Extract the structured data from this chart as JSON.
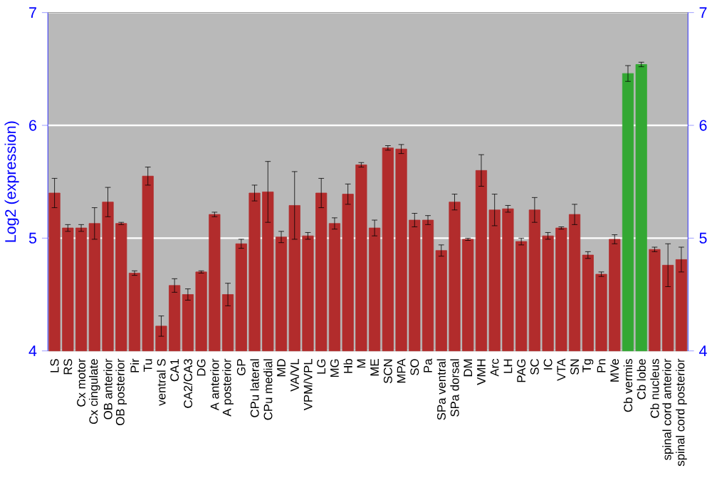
{
  "chart_data": {
    "type": "bar",
    "ylabel": "Log2 (expression)",
    "categories": [
      "LS",
      "RS",
      "Cx motor",
      "Cx cingulate",
      "OB anterior",
      "OB posterior",
      "Pir",
      "Tu",
      "ventral S",
      "CA1",
      "CA2/CA3",
      "DG",
      "A anterior",
      "A posterior",
      "GP",
      "CPu lateral",
      "CPu medial",
      "MD",
      "VA/VL",
      "VPM/VPL",
      "LG",
      "MG",
      "Hb",
      "M",
      "ME",
      "SCN",
      "MPA",
      "SO",
      "Pa",
      "SPa ventral",
      "SPa dorsal",
      "DM",
      "VMH",
      "Arc",
      "LH",
      "PAG",
      "SC",
      "IC",
      "VTA",
      "SN",
      "Tg",
      "Pn",
      "MVe",
      "Cb vermis",
      "Cb lobe",
      "Cb nucleus",
      "spinal cord anterior",
      "spinal cord posterior"
    ],
    "values": [
      5.4,
      5.09,
      5.09,
      5.13,
      5.32,
      5.13,
      4.69,
      5.55,
      4.22,
      4.58,
      4.5,
      4.7,
      5.21,
      4.5,
      4.95,
      5.4,
      5.41,
      5.01,
      5.29,
      5.02,
      5.4,
      5.13,
      5.39,
      5.65,
      5.09,
      5.8,
      5.79,
      5.16,
      5.16,
      4.89,
      5.32,
      4.99,
      5.6,
      5.25,
      5.26,
      4.97,
      5.25,
      5.02,
      5.09,
      5.21,
      4.85,
      4.68,
      4.99,
      6.46,
      6.54,
      4.9,
      4.76,
      4.81
    ],
    "errors": [
      0.13,
      0.03,
      0.03,
      0.14,
      0.13,
      0.01,
      0.02,
      0.08,
      0.09,
      0.06,
      0.05,
      0.01,
      0.02,
      0.1,
      0.04,
      0.07,
      0.27,
      0.05,
      0.3,
      0.03,
      0.13,
      0.05,
      0.09,
      0.02,
      0.07,
      0.02,
      0.04,
      0.06,
      0.04,
      0.05,
      0.07,
      0.01,
      0.14,
      0.14,
      0.03,
      0.03,
      0.11,
      0.03,
      0.01,
      0.09,
      0.03,
      0.02,
      0.04,
      0.07,
      0.02,
      0.02,
      0.19,
      0.11
    ],
    "colors": [
      "#b22c2c",
      "#b22c2c",
      "#b22c2c",
      "#b22c2c",
      "#b22c2c",
      "#b22c2c",
      "#b22c2c",
      "#b22c2c",
      "#b22c2c",
      "#b22c2c",
      "#b22c2c",
      "#b22c2c",
      "#b22c2c",
      "#b22c2c",
      "#b22c2c",
      "#b22c2c",
      "#b22c2c",
      "#b22c2c",
      "#b22c2c",
      "#b22c2c",
      "#b22c2c",
      "#b22c2c",
      "#b22c2c",
      "#b22c2c",
      "#b22c2c",
      "#b22c2c",
      "#b22c2c",
      "#b22c2c",
      "#b22c2c",
      "#b22c2c",
      "#b22c2c",
      "#b22c2c",
      "#b22c2c",
      "#b22c2c",
      "#b22c2c",
      "#b22c2c",
      "#b22c2c",
      "#b22c2c",
      "#b22c2c",
      "#b22c2c",
      "#b22c2c",
      "#b22c2c",
      "#b22c2c",
      "#33a833",
      "#33a833",
      "#b22c2c",
      "#b22c2c",
      "#b22c2c"
    ],
    "ylim": [
      4,
      7
    ],
    "yticks": [
      4,
      5,
      6,
      7
    ],
    "y2lim": [
      4,
      7
    ],
    "y2ticks": [
      4,
      5,
      6,
      7
    ],
    "grid": "y"
  }
}
